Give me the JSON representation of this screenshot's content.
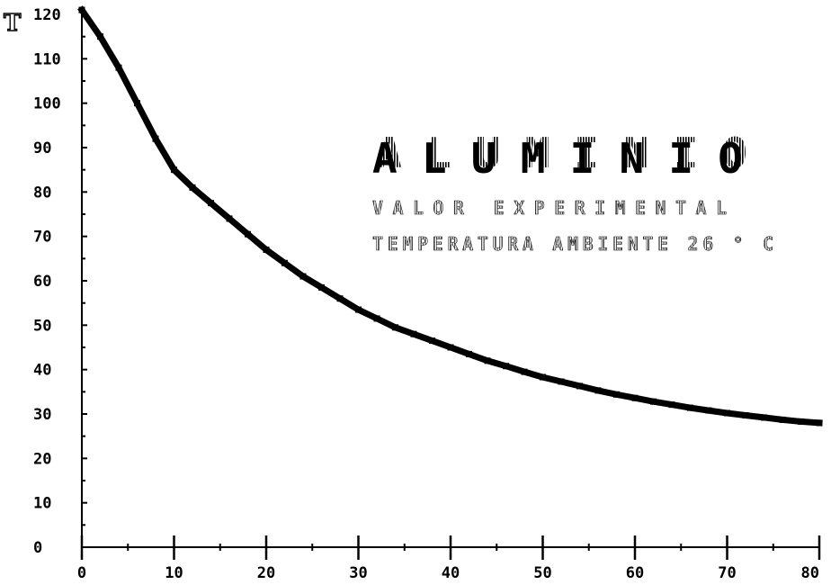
{
  "chart_data": {
    "type": "line",
    "ylabel": "T",
    "xlim": [
      0,
      80
    ],
    "ylim": [
      0,
      120
    ],
    "x_ticks": [
      0,
      10,
      20,
      30,
      40,
      50,
      60,
      70,
      80
    ],
    "y_ticks": [
      0,
      10,
      20,
      30,
      40,
      50,
      60,
      70,
      80,
      90,
      100,
      110,
      120
    ],
    "x_tick_labels": [
      "0",
      "10",
      "20",
      "30",
      "40",
      "50",
      "60",
      "70",
      "80"
    ],
    "y_tick_labels": [
      "0",
      "10",
      "20",
      "30",
      "40",
      "50",
      "60",
      "70",
      "80",
      "90",
      "100",
      "110",
      "120"
    ],
    "series": [
      {
        "x": [
          0,
          2,
          4,
          6,
          8,
          10,
          12,
          14,
          16,
          18,
          20,
          22,
          24,
          26,
          28,
          30,
          32,
          34,
          36,
          38,
          40,
          42,
          44,
          46,
          48,
          50,
          52,
          54,
          56,
          58,
          60,
          62,
          64,
          66,
          68,
          70,
          72,
          74,
          76,
          78,
          80
        ],
        "y": [
          121,
          115,
          108,
          100,
          92,
          85,
          81,
          77.5,
          74,
          70.5,
          67,
          64,
          61,
          58.5,
          56,
          53.5,
          51.5,
          49.5,
          48,
          46.5,
          45,
          43.5,
          42,
          40.8,
          39.5,
          38.3,
          37.3,
          36.3,
          35.3,
          34.4,
          33.6,
          32.8,
          32.1,
          31.4,
          30.8,
          30.2,
          29.7,
          29.2,
          28.7,
          28.3,
          28
        ]
      }
    ],
    "annotations": {
      "title": "ALUMINIO",
      "line1": "VALOR EXPERIMENTAL",
      "line2": "TEMPERATURA AMBIENTE 26 ° C"
    },
    "grid": false,
    "color": "#000000"
  }
}
